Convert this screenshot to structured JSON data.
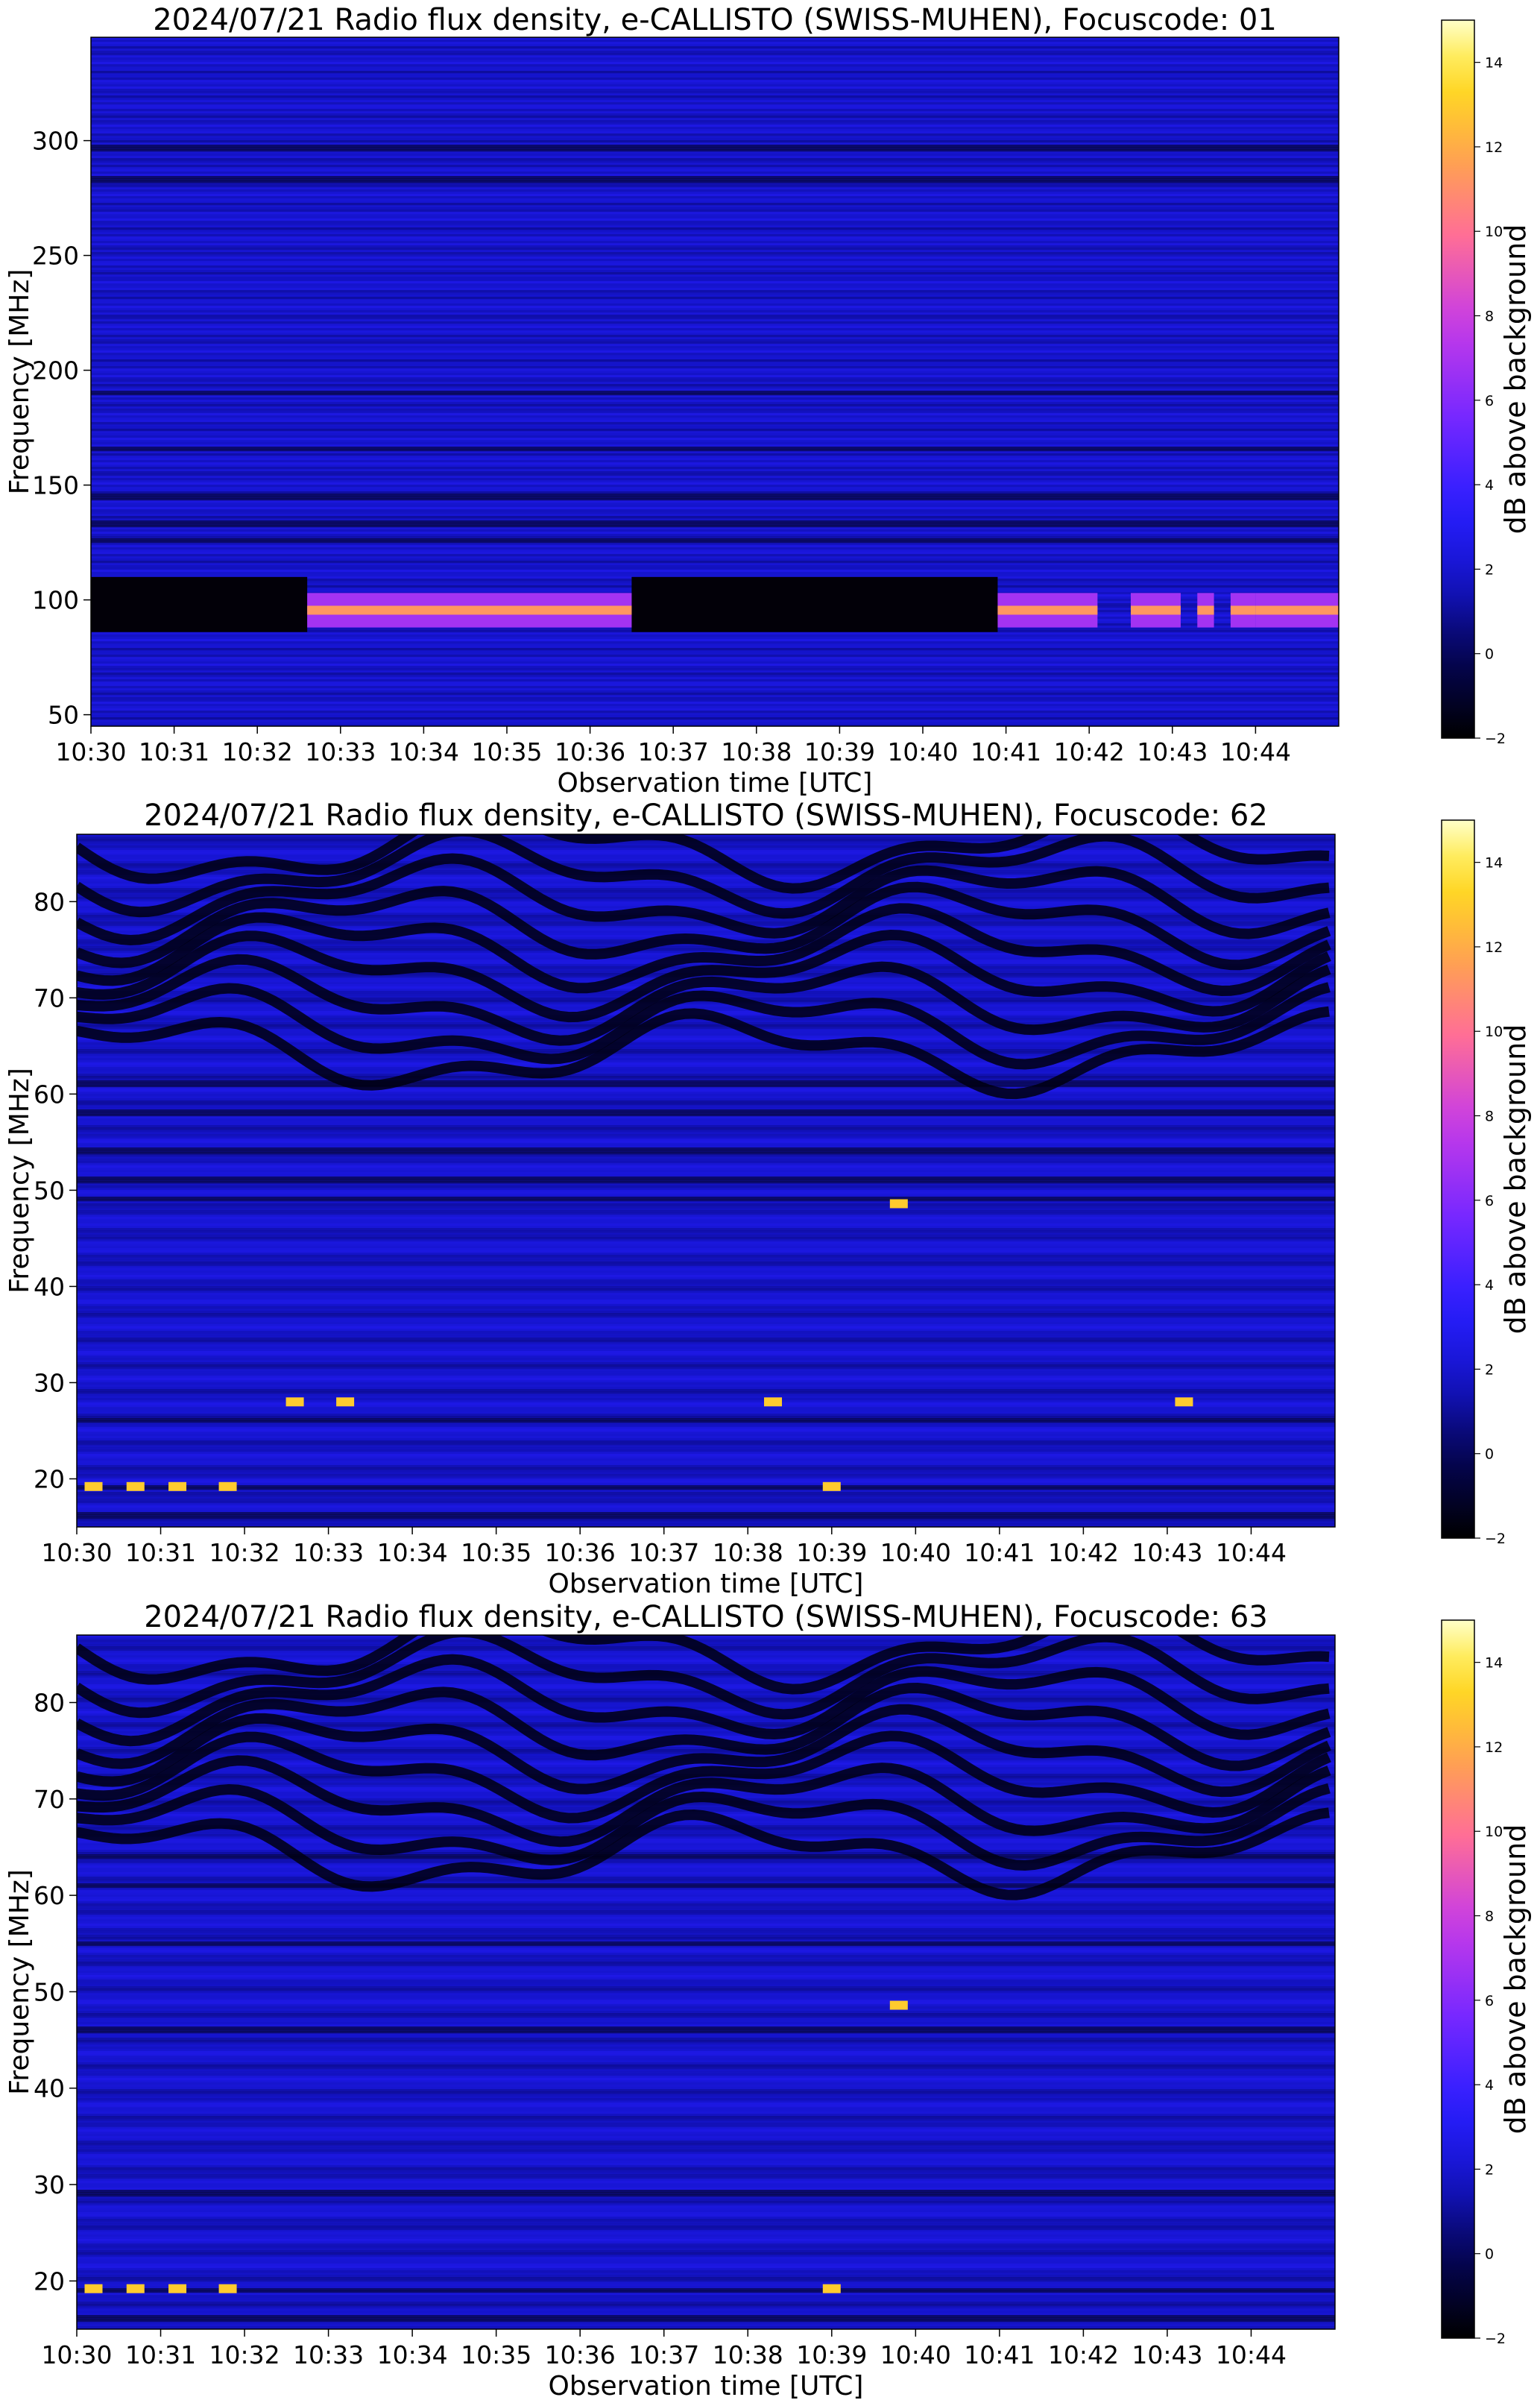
{
  "chart_data": [
    {
      "type": "heatmap",
      "title": "2024/07/21  Radio flux density, e-CALLISTO (SWISS-MUHEN), Focuscode: 01",
      "xlabel": "Observation time [UTC]",
      "ylabel": "Frequency [MHz]",
      "colorbar_label": "dB above background",
      "x_ticks": [
        "10:30",
        "10:31",
        "10:32",
        "10:33",
        "10:34",
        "10:35",
        "10:36",
        "10:37",
        "10:38",
        "10:39",
        "10:40",
        "10:41",
        "10:42",
        "10:43",
        "10:44"
      ],
      "x_range": [
        "10:30",
        "10:45"
      ],
      "y_ticks": [
        50,
        100,
        150,
        200,
        250,
        300
      ],
      "ylim": [
        45,
        345
      ],
      "colorbar_ticks": [
        -2,
        0,
        2,
        4,
        6,
        8,
        10,
        12,
        14
      ],
      "colorbar_range": [
        -2,
        15
      ],
      "colormap": "gnuplot2",
      "features": {
        "black_band_mhz": [
          86,
          110
        ],
        "black_band_minutes": [
          [
            0,
            2.6
          ],
          [
            6.5,
            10.9
          ]
        ],
        "bright_band_mhz": [
          88,
          103
        ],
        "bright_band_minutes": [
          [
            2.6,
            6.5
          ],
          [
            10.9,
            12.1
          ],
          [
            12.5,
            13.1
          ],
          [
            13.3,
            13.5
          ],
          [
            13.7,
            14.0
          ],
          [
            14.0,
            15
          ]
        ],
        "horizontal_lines_mhz": [
          297,
          283,
          190,
          166,
          145,
          133,
          126
        ]
      }
    },
    {
      "type": "heatmap",
      "title": "2024/07/21  Radio flux density, e-CALLISTO (SWISS-MUHEN), Focuscode: 62",
      "xlabel": "Observation time [UTC]",
      "ylabel": "Frequency [MHz]",
      "colorbar_label": "dB above background",
      "x_ticks": [
        "10:30",
        "10:31",
        "10:32",
        "10:33",
        "10:34",
        "10:35",
        "10:36",
        "10:37",
        "10:38",
        "10:39",
        "10:40",
        "10:41",
        "10:42",
        "10:43",
        "10:44"
      ],
      "x_range": [
        "10:30",
        "10:45"
      ],
      "y_ticks": [
        20,
        30,
        40,
        50,
        60,
        70,
        80
      ],
      "ylim": [
        15,
        87
      ],
      "colorbar_ticks": [
        -2,
        0,
        2,
        4,
        6,
        8,
        10,
        12,
        14
      ],
      "colorbar_range": [
        -2,
        15
      ],
      "colormap": "gnuplot2",
      "features": {
        "wave_region_mhz": [
          63,
          87
        ],
        "horizontal_lines_mhz": [
          61,
          58,
          54,
          51,
          49,
          26,
          19,
          16
        ],
        "bright_spots": [
          {
            "minute": 0.2,
            "mhz": 19.2
          },
          {
            "minute": 0.7,
            "mhz": 19.2
          },
          {
            "minute": 1.2,
            "mhz": 19.2
          },
          {
            "minute": 1.8,
            "mhz": 19.2
          },
          {
            "minute": 2.6,
            "mhz": 28
          },
          {
            "minute": 3.2,
            "mhz": 28
          },
          {
            "minute": 8.3,
            "mhz": 28
          },
          {
            "minute": 9.0,
            "mhz": 19.2
          },
          {
            "minute": 9.8,
            "mhz": 48.6
          },
          {
            "minute": 13.2,
            "mhz": 28
          }
        ]
      }
    },
    {
      "type": "heatmap",
      "title": "2024/07/21  Radio flux density, e-CALLISTO (SWISS-MUHEN), Focuscode: 63",
      "xlabel": "Observation time [UTC]",
      "ylabel": "Frequency [MHz]",
      "colorbar_label": "dB above background",
      "x_ticks": [
        "10:30",
        "10:31",
        "10:32",
        "10:33",
        "10:34",
        "10:35",
        "10:36",
        "10:37",
        "10:38",
        "10:39",
        "10:40",
        "10:41",
        "10:42",
        "10:43",
        "10:44"
      ],
      "x_range": [
        "10:30",
        "10:45"
      ],
      "y_ticks": [
        20,
        30,
        40,
        50,
        60,
        70,
        80
      ],
      "ylim": [
        15,
        87
      ],
      "colorbar_ticks": [
        -2,
        0,
        2,
        4,
        6,
        8,
        10,
        12,
        14
      ],
      "colorbar_range": [
        -2,
        15
      ],
      "colormap": "gnuplot2",
      "features": {
        "wave_region_mhz": [
          63,
          87
        ],
        "horizontal_lines_mhz": [
          64,
          61,
          55,
          46,
          29,
          19,
          16
        ],
        "bright_spots": [
          {
            "minute": 0.2,
            "mhz": 19.2
          },
          {
            "minute": 0.7,
            "mhz": 19.2
          },
          {
            "minute": 1.2,
            "mhz": 19.2
          },
          {
            "minute": 1.8,
            "mhz": 19.2
          },
          {
            "minute": 9.0,
            "mhz": 19.2
          },
          {
            "minute": 9.8,
            "mhz": 48.6
          }
        ]
      }
    }
  ]
}
